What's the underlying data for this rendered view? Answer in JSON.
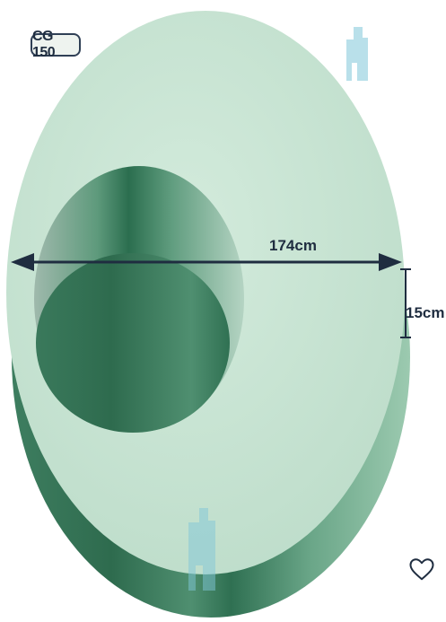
{
  "product": {
    "code_label": "CG 150",
    "diameter_label": "174cm",
    "thickness_label": "15cm"
  },
  "colors": {
    "top_face": "#cbe6d6",
    "side_dark": "#2e6b4e",
    "side_mid": "#5f9d7f",
    "side_light": "#9ccab0",
    "arrow": "#1f2d40",
    "watermark": "#7fc6d8"
  },
  "icons": {
    "favorite": "heart-outline-icon",
    "watermark": "brand-logo-icon"
  }
}
